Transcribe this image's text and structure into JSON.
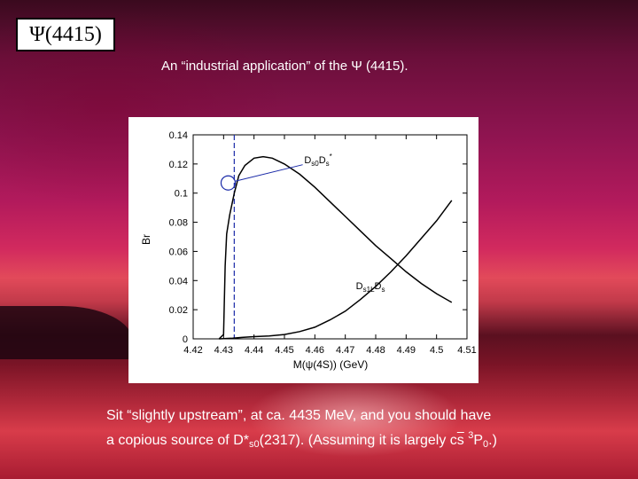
{
  "slide": {
    "title": "Ψ(4415)",
    "subtitle": "An “industrial application” of the Ψ (4415).",
    "caption": {
      "line1": "Sit “slightly upstream”, at ca. 4435 MeV, and you should have",
      "line2_a": "a copious source of D*",
      "line2_sub1": "s0",
      "line2_b": "(2317). (Assuming it is largely c",
      "line2_s": "s",
      "line2_c": " ",
      "line2_sup": "3",
      "line2_d": "P",
      "line2_sub2": "0",
      "line2_e": ".)"
    }
  },
  "chart_data": {
    "type": "line",
    "xlabel": "M(ψ(4S)) (GeV)",
    "ylabel": "Br",
    "xlim": [
      4.42,
      4.51
    ],
    "ylim": [
      0,
      0.14
    ],
    "x_ticks": [
      "4.42",
      "4.43",
      "4.44",
      "4.45",
      "4.46",
      "4.47",
      "4.48",
      "4.49",
      "4.5",
      "4.51"
    ],
    "y_ticks": [
      "0",
      "0.02",
      "0.04",
      "0.06",
      "0.08",
      "0.1",
      "0.12",
      "0.14"
    ],
    "grid": false,
    "series": [
      {
        "name": "Ds0Ds*",
        "label_main": "D",
        "label_sub1": "s0",
        "label_mid": "D",
        "label_sub2": "s",
        "label_sup": "*",
        "x": [
          4.4285,
          4.43,
          4.4305,
          4.431,
          4.432,
          4.4335,
          4.435,
          4.437,
          4.44,
          4.443,
          4.446,
          4.45,
          4.455,
          4.46,
          4.465,
          4.47,
          4.475,
          4.48,
          4.485,
          4.49,
          4.495,
          4.5,
          4.505
        ],
        "y": [
          0,
          0.003,
          0.05,
          0.072,
          0.085,
          0.1,
          0.112,
          0.119,
          0.124,
          0.125,
          0.124,
          0.12,
          0.113,
          0.104,
          0.094,
          0.084,
          0.074,
          0.064,
          0.055,
          0.046,
          0.038,
          0.031,
          0.025
        ]
      },
      {
        "name": "Ds1LDs",
        "label_main": "D",
        "label_sub1": "s1L",
        "label_mid": "D",
        "label_sub2": "s",
        "label_sup": "",
        "x": [
          4.4285,
          4.433,
          4.436,
          4.44,
          4.445,
          4.45,
          4.455,
          4.46,
          4.465,
          4.47,
          4.475,
          4.48,
          4.485,
          4.49,
          4.495,
          4.5,
          4.505
        ],
        "y": [
          0,
          0.0005,
          0.001,
          0.0015,
          0.002,
          0.003,
          0.005,
          0.008,
          0.013,
          0.019,
          0.027,
          0.036,
          0.046,
          0.057,
          0.069,
          0.081,
          0.095
        ]
      }
    ],
    "marker_line_x": 4.4335,
    "circle_center": {
      "x": 4.4315,
      "y": 0.107
    }
  },
  "colors": {
    "marker_line": "#1a2aa8",
    "curve": "#000000"
  }
}
